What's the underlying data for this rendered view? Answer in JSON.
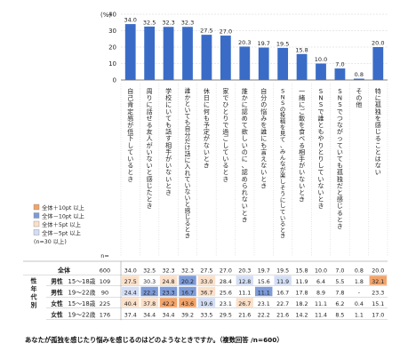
{
  "chart_data": {
    "type": "bar",
    "y_unit": "(%)",
    "ylim": [
      0,
      40
    ],
    "yticks": [
      0,
      10,
      20,
      30,
      40
    ],
    "grid": true,
    "categories": [
      "自己肯定感が低下しているとき",
      "周りに話せる友人がいないと感じたとき",
      "学校にいても話す相手がいないとき",
      "誰かといても自分だけ話に入れていないと感じるとき",
      "休日に何も予定がないとき",
      "家でひとりで過ごしているとき",
      "誰かに認めて欲しいのに、認められないとき",
      "自分の悩みを誰にも言えないとき",
      "SNSの投稿を見て、みんなが楽しそうにしているとき",
      "一緒にご飯を食べる相手がいないとき",
      "SNSで誰ともやりとりしていないとき",
      "SNSでつながっていても孤独だと感じるとき",
      "その他",
      "特に孤独を感じることはない"
    ],
    "values": [
      34.0,
      32.5,
      32.3,
      32.3,
      27.5,
      27.0,
      20.3,
      19.7,
      19.5,
      15.8,
      10.0,
      7.0,
      0.8,
      20.0
    ],
    "bar_color": "#3a6cc7",
    "legend": [
      {
        "label": "全体＋10pt 以上",
        "color": "#f2a46b"
      },
      {
        "label": "全体－10pt 以上",
        "color": "#7d9bd8"
      },
      {
        "label": "全体＋5pt 以上",
        "color": "#fbe0c9"
      },
      {
        "label": "全体－5pt 以上",
        "color": "#d3def5"
      },
      {
        "label": "(n=30 以上)",
        "color": ""
      }
    ],
    "n_header": "n=",
    "side_label": "性年代別",
    "table_rows": [
      {
        "label": "全体",
        "sub": "",
        "n": "600",
        "values": [
          "34.0",
          "32.5",
          "32.3",
          "32.3",
          "27.5",
          "27.0",
          "20.3",
          "19.7",
          "19.5",
          "15.8",
          "10.0",
          "7.0",
          "0.8",
          "20.0"
        ],
        "hl": [
          0,
          0,
          0,
          0,
          0,
          0,
          0,
          0,
          0,
          0,
          0,
          0,
          0,
          0
        ]
      },
      {
        "label": "男性",
        "sub": "15～18歳",
        "n": "109",
        "values": [
          "27.5",
          "30.3",
          "24.8",
          "20.2",
          "33.0",
          "28.4",
          "12.8",
          "15.6",
          "11.9",
          "11.9",
          "6.4",
          "5.5",
          "1.8",
          "32.1"
        ],
        "hl": [
          3,
          0,
          3,
          2,
          3,
          0,
          4,
          0,
          4,
          0,
          0,
          0,
          0,
          1
        ]
      },
      {
        "label": "男性",
        "sub": "19～22歳",
        "n": "90",
        "values": [
          "24.4",
          "22.2",
          "23.3",
          "16.7",
          "36.7",
          "25.6",
          "11.1",
          "11.1",
          "16.7",
          "17.8",
          "8.9",
          "7.8",
          "-",
          "23.3"
        ],
        "hl": [
          4,
          2,
          2,
          2,
          3,
          0,
          0,
          2,
          0,
          0,
          0,
          0,
          0,
          0
        ]
      },
      {
        "label": "女性",
        "sub": "15～18歳",
        "n": "225",
        "values": [
          "40.4",
          "37.8",
          "42.2",
          "43.6",
          "19.6",
          "23.1",
          "26.7",
          "23.1",
          "22.7",
          "18.2",
          "11.1",
          "6.2",
          "0.4",
          "15.1"
        ],
        "hl": [
          3,
          3,
          1,
          1,
          4,
          0,
          3,
          0,
          0,
          0,
          0,
          0,
          0,
          0
        ]
      },
      {
        "label": "女性",
        "sub": "19～22歳",
        "n": "176",
        "values": [
          "37.4",
          "34.4",
          "34.4",
          "39.2",
          "33.5",
          "29.5",
          "21.6",
          "22.2",
          "21.6",
          "14.2",
          "11.4",
          "8.5",
          "1.1",
          "17.0"
        ],
        "hl": [
          0,
          0,
          0,
          0,
          0,
          0,
          0,
          0,
          0,
          0,
          0,
          0,
          0,
          0
        ]
      }
    ],
    "caption": "あなたが孤独を感じたり悩みを感じるのはどのようなときですか。（複数回答 /n=600）"
  }
}
